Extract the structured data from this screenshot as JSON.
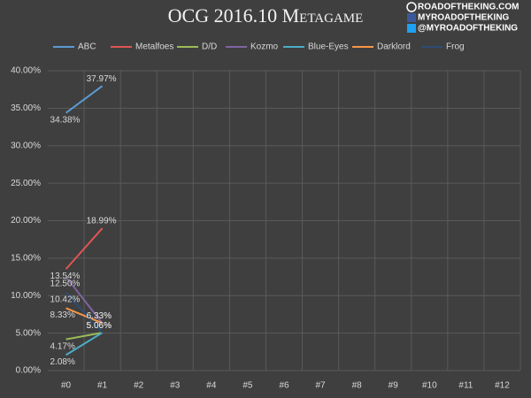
{
  "chart_data": {
    "type": "line",
    "title": "OCG 2016.10 Metagame",
    "watermark": [
      "ROADOFTHEKING.COM",
      "MYROADOFTHEKING",
      "@MYROADOFTHEKING"
    ],
    "categories": [
      "#0",
      "#1",
      "#2",
      "#3",
      "#4",
      "#5",
      "#6",
      "#7",
      "#8",
      "#9",
      "#10",
      "#11",
      "#12"
    ],
    "series": [
      {
        "name": "ABC",
        "color": "#5b9bd5",
        "values": [
          34.38,
          37.97,
          null,
          null,
          null,
          null,
          null,
          null,
          null,
          null,
          null,
          null,
          null
        ],
        "value_labels": [
          "34.38%",
          "37.97%",
          null,
          null,
          null,
          null,
          null,
          null,
          null,
          null,
          null,
          null,
          null
        ]
      },
      {
        "name": "Metalfoes",
        "color": "#e05555",
        "values": [
          13.54,
          18.99,
          null,
          null,
          null,
          null,
          null,
          null,
          null,
          null,
          null,
          null,
          null
        ],
        "value_labels": [
          "13.54%",
          "18.99%",
          null,
          null,
          null,
          null,
          null,
          null,
          null,
          null,
          null,
          null,
          null
        ]
      },
      {
        "name": "D/D",
        "color": "#9bbb59",
        "values": [
          4.17,
          5.06,
          null,
          null,
          null,
          null,
          null,
          null,
          null,
          null,
          null,
          null,
          null
        ],
        "value_labels": [
          "4.17%",
          "5.06%",
          null,
          null,
          null,
          null,
          null,
          null,
          null,
          null,
          null,
          null,
          null
        ]
      },
      {
        "name": "Kozmo",
        "color": "#8064a2",
        "values": [
          12.5,
          6.33,
          null,
          null,
          null,
          null,
          null,
          null,
          null,
          null,
          null,
          null,
          null
        ],
        "value_labels": [
          "12.50%",
          "6.33%",
          null,
          null,
          null,
          null,
          null,
          null,
          null,
          null,
          null,
          null,
          null
        ]
      },
      {
        "name": "Blue-Eyes",
        "color": "#4bacc6",
        "values": [
          2.08,
          5.06,
          null,
          null,
          null,
          null,
          null,
          null,
          null,
          null,
          null,
          null,
          null
        ],
        "value_labels": [
          "2.08%",
          "5.06%",
          null,
          null,
          null,
          null,
          null,
          null,
          null,
          null,
          null,
          null,
          null
        ]
      },
      {
        "name": "Darklord",
        "color": "#f79646",
        "values": [
          8.33,
          6.33,
          null,
          null,
          null,
          null,
          null,
          null,
          null,
          null,
          null,
          null,
          null
        ],
        "value_labels": [
          "8.33%",
          "6.33%",
          null,
          null,
          null,
          null,
          null,
          null,
          null,
          null,
          null,
          null,
          null
        ]
      },
      {
        "name": "Frog",
        "color": "#2c4d75",
        "values": [
          10.42,
          5.06,
          null,
          null,
          null,
          null,
          null,
          null,
          null,
          null,
          null,
          null,
          null
        ],
        "value_labels": [
          "10.42%",
          "5.06%",
          null,
          null,
          null,
          null,
          null,
          null,
          null,
          null,
          null,
          null,
          null
        ]
      }
    ],
    "ylim": [
      0,
      40
    ],
    "yticks": [
      {
        "value": 0,
        "label": "0.00%"
      },
      {
        "value": 5,
        "label": "5.00%"
      },
      {
        "value": 10,
        "label": "10.00%"
      },
      {
        "value": 15,
        "label": "15.00%"
      },
      {
        "value": 20,
        "label": "20.00%"
      },
      {
        "value": 25,
        "label": "25.00%"
      },
      {
        "value": 30,
        "label": "30.00%"
      },
      {
        "value": 35,
        "label": "35.00%"
      },
      {
        "value": 40,
        "label": "40.00%"
      }
    ],
    "grid": true,
    "legend": "top"
  }
}
